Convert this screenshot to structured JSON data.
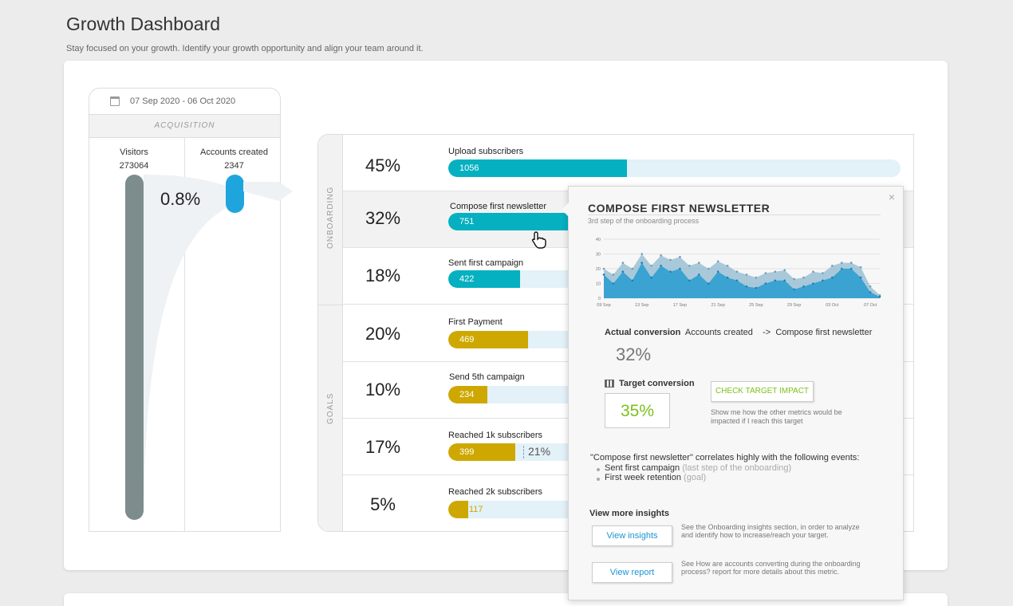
{
  "header": {
    "title": "Growth Dashboard",
    "subtitle": "Stay focused on your growth. Identify your growth opportunity and align your team around it."
  },
  "acquisition": {
    "date_range": "07 Sep 2020 -  06 Oct 2020",
    "section_label": "ACQUISITION",
    "visitors_label": "Visitors",
    "visitors_value": "273064",
    "accounts_label": "Accounts created",
    "accounts_value": "2347",
    "conversion_rate": "0.8%"
  },
  "funnel": {
    "onboarding_label": "ONBOARDING",
    "goals_label": "GOALS",
    "onboarding_steps": [
      {
        "pct": "45%",
        "name": "Upload subscribers",
        "value": "1056",
        "fill_fraction": 0.395
      },
      {
        "pct": "32%",
        "name": "Compose first newsletter",
        "value": "751",
        "fill_fraction": 0.28
      },
      {
        "pct": "18%",
        "name": "Sent first campaign",
        "value": "422",
        "fill_fraction": 0.158
      }
    ],
    "goal_steps": [
      {
        "pct": "20%",
        "name": "First Payment",
        "value": "469",
        "fill_fraction": 0.176
      },
      {
        "pct": "10%",
        "name": "Send 5th campaign",
        "value": "234",
        "fill_fraction": 0.087
      },
      {
        "pct": "17%",
        "name": "Reached 1k subscribers",
        "value": "399",
        "fill_fraction": 0.148,
        "target": "21%"
      },
      {
        "pct": "5%",
        "name": "Reached 2k subscribers",
        "value": "117",
        "fill_fraction": 0.044
      }
    ]
  },
  "popup": {
    "close": "×",
    "title": "COMPOSE FIRST NEWSLETTER",
    "subtitle": "3rd step of the onboarding process",
    "actual_label": "Actual conversion",
    "actual_from": "Accounts created",
    "arrow": "->",
    "actual_to": "Compose first newsletter",
    "actual_value": "32%",
    "target_label": "Target conversion",
    "target_value": "35%",
    "check_button": "CHECK TARGET IMPACT",
    "check_help": "Show me how the other metrics would be impacted if I reach this target",
    "corr_intro": "\"Compose first newsletter\" correlates highly with the following events:",
    "corr_items": [
      {
        "event": "Sent first campaign",
        "hint": "(last step of the onboarding)"
      },
      {
        "event": "First week retention",
        "hint": "(goal)"
      }
    ],
    "insights_heading": "View more insights",
    "view_insights_button": "View insights",
    "view_insights_help": "See the Onboarding insights section, in order to analyze and identify how to increase/reach your target.",
    "view_report_button": "View report",
    "view_report_help": "See How are accounts converting during the onboarding process? report for more details about this metric."
  },
  "colors": {
    "onboarding": "#05b0c0",
    "goals": "#cea800",
    "chart_back": "#8fb9d0",
    "chart_front": "#2e9fd0"
  },
  "chart_data": {
    "type": "area",
    "title": "",
    "x": [
      "09 Sep",
      "10 Sep",
      "11 Sep",
      "12 Sep",
      "13 Sep",
      "14 Sep",
      "15 Sep",
      "16 Sep",
      "17 Sep",
      "18 Sep",
      "19 Sep",
      "20 Sep",
      "21 Sep",
      "22 Sep",
      "23 Sep",
      "24 Sep",
      "25 Sep",
      "26 Sep",
      "27 Sep",
      "28 Sep",
      "29 Sep",
      "30 Sep",
      "01 Oct",
      "02 Oct",
      "03 Oct",
      "04 Oct",
      "05 Oct",
      "06 Oct",
      "07 Oct",
      "08 Oct"
    ],
    "xticks": [
      "09 Sep",
      "13 Sep",
      "17 Sep",
      "21 Sep",
      "25 Sep",
      "29 Sep",
      "03 Oct",
      "07 Oct"
    ],
    "yticks": [
      0,
      10,
      20,
      30,
      40
    ],
    "ylim": [
      0,
      40
    ],
    "series": [
      {
        "name": "back",
        "values": [
          20,
          16,
          24,
          20,
          30,
          22,
          29,
          26,
          28,
          22,
          24,
          20,
          25,
          22,
          18,
          16,
          14,
          17,
          18,
          19,
          13,
          14,
          18,
          17,
          22,
          24,
          24,
          21,
          8,
          2
        ]
      },
      {
        "name": "front",
        "values": [
          16,
          10,
          18,
          12,
          24,
          14,
          22,
          18,
          20,
          12,
          16,
          10,
          18,
          14,
          12,
          8,
          7,
          10,
          12,
          12,
          6,
          8,
          10,
          12,
          14,
          20,
          20,
          14,
          4,
          1
        ]
      }
    ]
  }
}
